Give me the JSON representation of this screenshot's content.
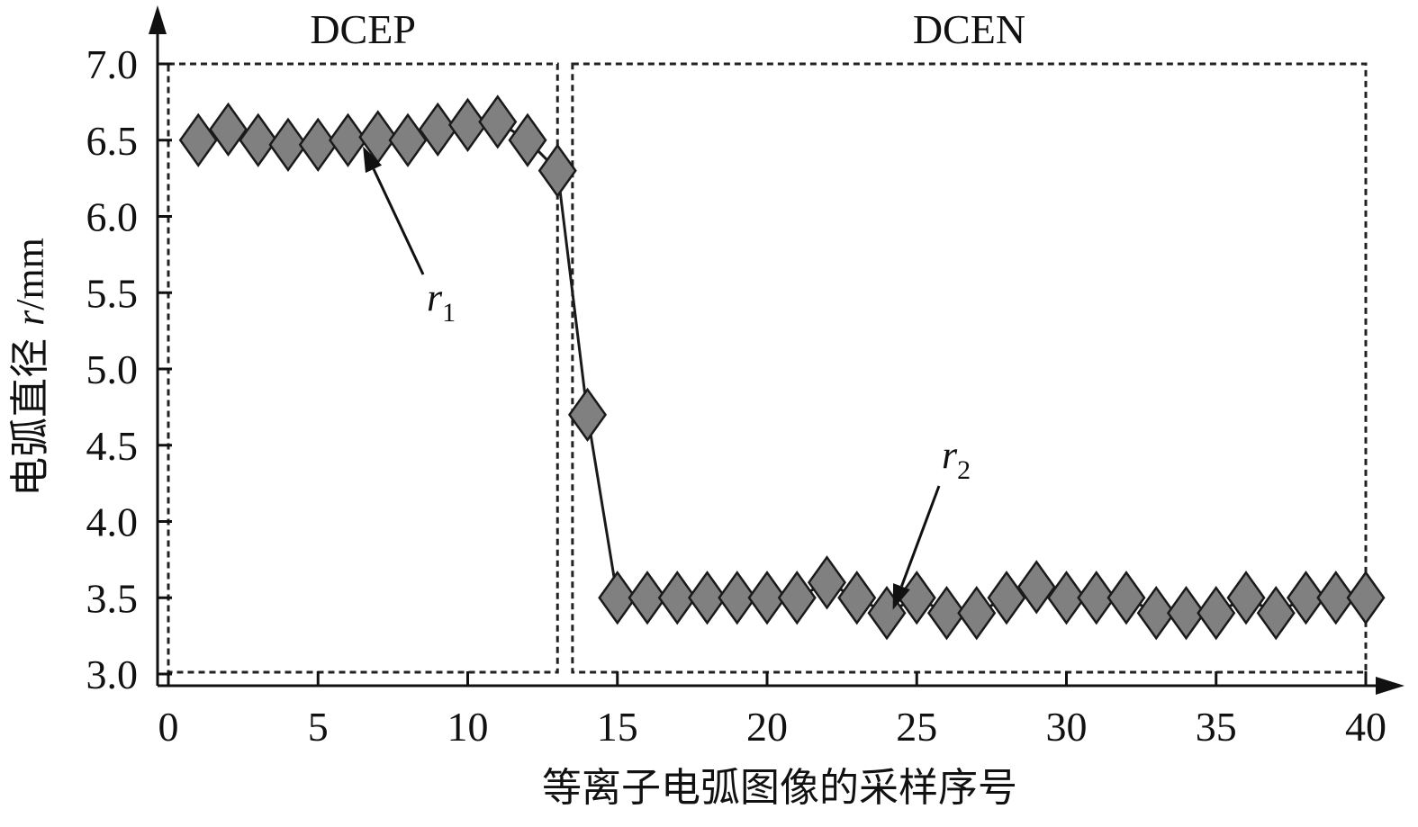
{
  "chart_data": {
    "type": "line",
    "marker": "diamond",
    "colors": {
      "marker_fill": "#808080",
      "marker_stroke": "#1a1a1a",
      "line": "#1a1a1a",
      "axis": "#111111"
    },
    "xlabel": "等离子电弧图像的采样序号",
    "ylabel_prefix": "电弧直径 ",
    "ylabel_var": "r",
    "ylabel_unit": "/mm",
    "xlim": [
      0,
      40
    ],
    "ylim": [
      3.0,
      7.0
    ],
    "xticks": [
      "0",
      "5",
      "10",
      "15",
      "20",
      "25",
      "30",
      "35",
      "40"
    ],
    "yticks": [
      "3.0",
      "3.5",
      "4.0",
      "4.5",
      "5.0",
      "5.5",
      "6.0",
      "6.5",
      "7.0"
    ],
    "grid": false,
    "series": [
      {
        "x": [
          1,
          2,
          3,
          4,
          5,
          6,
          7,
          8,
          9,
          10,
          11,
          12,
          13,
          14,
          15,
          16,
          17,
          18,
          19,
          20,
          21,
          22,
          23,
          24,
          25,
          26,
          27,
          28,
          29,
          30,
          31,
          32,
          33,
          34,
          35,
          36,
          37,
          38,
          39,
          40
        ],
        "y": [
          6.5,
          6.57,
          6.5,
          6.47,
          6.47,
          6.5,
          6.52,
          6.5,
          6.57,
          6.6,
          6.62,
          6.5,
          6.3,
          4.7,
          3.5,
          3.5,
          3.5,
          3.5,
          3.5,
          3.5,
          3.5,
          3.6,
          3.5,
          3.4,
          3.5,
          3.4,
          3.4,
          3.5,
          3.57,
          3.5,
          3.5,
          3.5,
          3.4,
          3.4,
          3.4,
          3.5,
          3.4,
          3.5,
          3.5,
          3.5
        ]
      }
    ],
    "regions": [
      {
        "label": "DCEP",
        "x_range": [
          0,
          13
        ]
      },
      {
        "label": "DCEN",
        "x_range": [
          13.5,
          40
        ]
      }
    ],
    "annotations": [
      {
        "text": "r",
        "subscript": "1",
        "point": [
          6.5,
          6.46
        ]
      },
      {
        "text": "r",
        "subscript": "2",
        "point": [
          24.2,
          3.42
        ]
      }
    ]
  }
}
